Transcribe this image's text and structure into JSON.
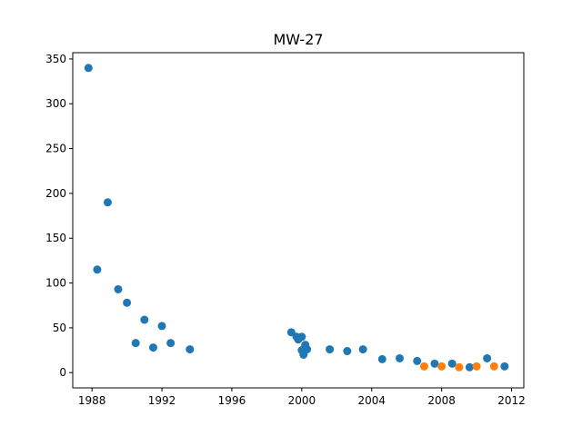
{
  "chart_data": {
    "type": "scatter",
    "title": "MW-27",
    "xlabel": "",
    "ylabel": "",
    "xlim": [
      1986.9,
      2012.7
    ],
    "ylim": [
      -17,
      357
    ],
    "xticks": [
      1988,
      1992,
      1996,
      2000,
      2004,
      2008,
      2012
    ],
    "xtick_labels": [
      "1988",
      "1992",
      "1996",
      "2000",
      "2004",
      "2008",
      "2012"
    ],
    "yticks": [
      0,
      50,
      100,
      150,
      200,
      250,
      300,
      350
    ],
    "ytick_labels": [
      "0",
      "50",
      "100",
      "150",
      "200",
      "250",
      "300",
      "350"
    ],
    "grid": false,
    "legend": false,
    "series": [
      {
        "color": "#1f77b4",
        "points": [
          [
            1987.8,
            340
          ],
          [
            1988.3,
            115
          ],
          [
            1988.9,
            190
          ],
          [
            1989.5,
            93
          ],
          [
            1990.0,
            78
          ],
          [
            1990.5,
            33
          ],
          [
            1991.0,
            59
          ],
          [
            1991.5,
            28
          ],
          [
            1992.0,
            52
          ],
          [
            1992.5,
            33
          ],
          [
            1993.6,
            26
          ],
          [
            1999.4,
            45
          ],
          [
            1999.7,
            40
          ],
          [
            1999.8,
            37
          ],
          [
            2000.0,
            40
          ],
          [
            2000.0,
            25
          ],
          [
            2000.1,
            20
          ],
          [
            2000.2,
            31
          ],
          [
            2000.3,
            26
          ],
          [
            2001.6,
            26
          ],
          [
            2002.6,
            24
          ],
          [
            2003.5,
            26
          ],
          [
            2004.6,
            15
          ],
          [
            2005.6,
            16
          ],
          [
            2006.6,
            13
          ],
          [
            2007.6,
            10
          ],
          [
            2008.6,
            10
          ],
          [
            2009.6,
            6
          ],
          [
            2010.6,
            16
          ],
          [
            2011.6,
            7
          ]
        ]
      },
      {
        "color": "#ff7f0e",
        "points": [
          [
            2007.0,
            7
          ],
          [
            2008.0,
            7
          ],
          [
            2009.0,
            6
          ],
          [
            2010.0,
            7
          ],
          [
            2011.0,
            7
          ]
        ]
      }
    ]
  }
}
